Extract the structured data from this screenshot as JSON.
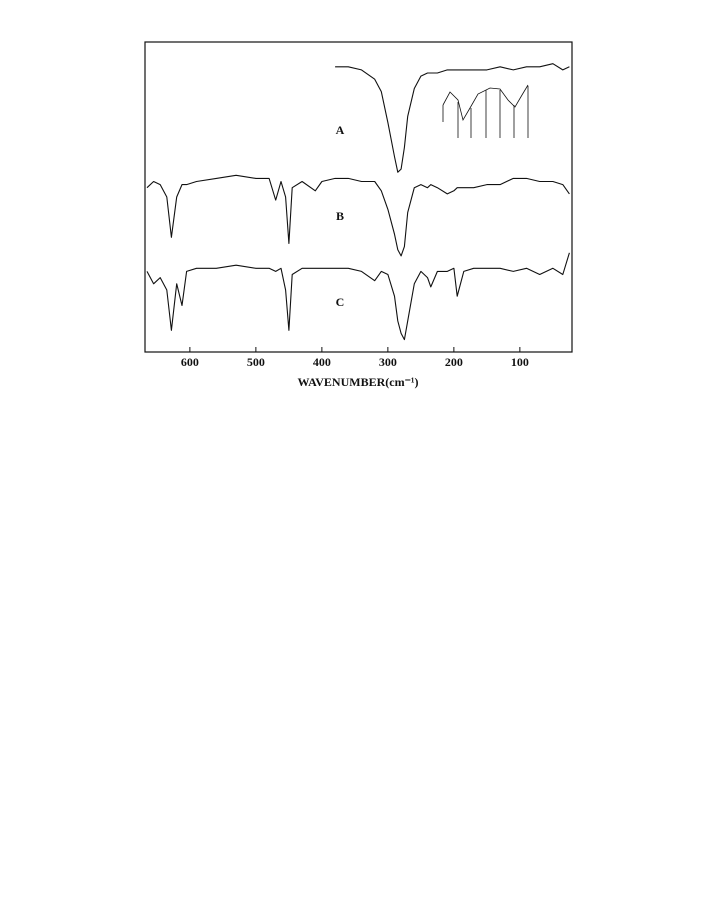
{
  "chart_data": {
    "type": "line",
    "xlabel": "WAVENUMBER(cm⁻¹)",
    "xlim": [
      668,
      21
    ],
    "xticks": [
      600,
      500,
      400,
      300,
      200,
      100
    ],
    "ylim": [
      0,
      100
    ],
    "color": "#111111",
    "x": [
      665,
      655,
      645,
      635,
      628,
      620,
      612,
      605,
      590,
      560,
      530,
      500,
      480,
      470,
      462,
      455,
      450,
      445,
      430,
      410,
      400,
      380,
      360,
      340,
      320,
      310,
      300,
      290,
      285,
      280,
      275,
      270,
      260,
      250,
      240,
      235,
      225,
      210,
      200,
      195,
      185,
      170,
      150,
      130,
      110,
      90,
      70,
      50,
      35,
      25
    ],
    "series": [
      {
        "name": "A",
        "color": "#111111",
        "values": [
          null,
          null,
          null,
          null,
          null,
          null,
          null,
          null,
          null,
          null,
          null,
          null,
          null,
          null,
          null,
          null,
          null,
          null,
          null,
          null,
          null,
          92,
          92,
          91,
          88,
          84,
          74,
          63,
          58,
          59,
          66,
          76,
          85,
          89,
          90,
          90,
          90,
          91,
          91,
          91,
          91,
          91,
          91,
          92,
          91,
          92,
          92,
          93,
          91,
          92
        ]
      },
      {
        "name": "B",
        "color": "#111111",
        "values": [
          53,
          55,
          54,
          50,
          37,
          50,
          54,
          54,
          55,
          56,
          57,
          56,
          56,
          49,
          55,
          50,
          35,
          53,
          55,
          52,
          55,
          56,
          56,
          55,
          55,
          52,
          46,
          38,
          33,
          31,
          34,
          45,
          53,
          54,
          53,
          54,
          53,
          51,
          52,
          53,
          53,
          53,
          54,
          54,
          56,
          56,
          55,
          55,
          54,
          51
        ]
      },
      {
        "name": "C",
        "color": "#111111",
        "values": [
          26,
          22,
          24,
          20,
          7,
          22,
          15,
          26,
          27,
          27,
          28,
          27,
          27,
          26,
          27,
          20,
          7,
          25,
          27,
          27,
          27,
          27,
          27,
          26,
          23,
          26,
          25,
          18,
          10,
          6,
          4,
          10,
          22,
          26,
          24,
          21,
          26,
          26,
          27,
          18,
          26,
          27,
          27,
          27,
          26,
          27,
          25,
          27,
          25,
          32
        ]
      }
    ]
  }
}
